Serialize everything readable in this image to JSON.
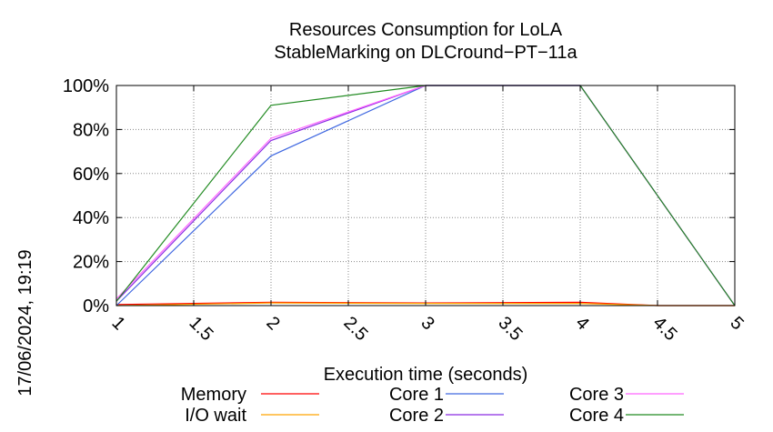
{
  "chart_data": {
    "type": "line",
    "title": [
      "Resources Consumption for LoLA",
      "StableMarking on DLCround−PT−11a"
    ],
    "xlabel": "Execution time (seconds)",
    "ylabel": "",
    "xlim": [
      1,
      5
    ],
    "ylim": [
      0,
      100
    ],
    "x_ticks": [
      "1",
      "1.5",
      "2",
      "2.5",
      "3",
      "3.5",
      "4",
      "4.5",
      "5"
    ],
    "y_ticks": [
      "0%",
      "20%",
      "40%",
      "60%",
      "80%",
      "100%"
    ],
    "grid": true,
    "legend_position": "bottom",
    "timestamp": "17/06/2024, 19:19",
    "series": [
      {
        "name": "Memory",
        "color": "#ff0000",
        "x": [
          1,
          2,
          3,
          4,
          4.5,
          5
        ],
        "y": [
          0.5,
          1.5,
          1.2,
          1.5,
          0,
          0
        ]
      },
      {
        "name": "I/O wait",
        "color": "#ffa500",
        "x": [
          1,
          2,
          3,
          4,
          4.5,
          5
        ],
        "y": [
          0,
          1.2,
          1,
          1,
          0,
          0
        ]
      },
      {
        "name": "Core 1",
        "color": "#4169e1",
        "x": [
          1,
          2,
          3,
          4,
          5
        ],
        "y": [
          0,
          68,
          100,
          100,
          0
        ]
      },
      {
        "name": "Core 2",
        "color": "#8a2be2",
        "x": [
          1,
          2,
          3,
          4,
          5
        ],
        "y": [
          2,
          75,
          100,
          100,
          0
        ]
      },
      {
        "name": "Core 3",
        "color": "#ff66ff",
        "x": [
          1,
          2,
          3,
          4,
          5
        ],
        "y": [
          3,
          76,
          100,
          100,
          0
        ]
      },
      {
        "name": "Core 4",
        "color": "#228b22",
        "x": [
          1,
          2,
          3,
          4,
          5
        ],
        "y": [
          2,
          91,
          100,
          100,
          0
        ]
      }
    ]
  }
}
